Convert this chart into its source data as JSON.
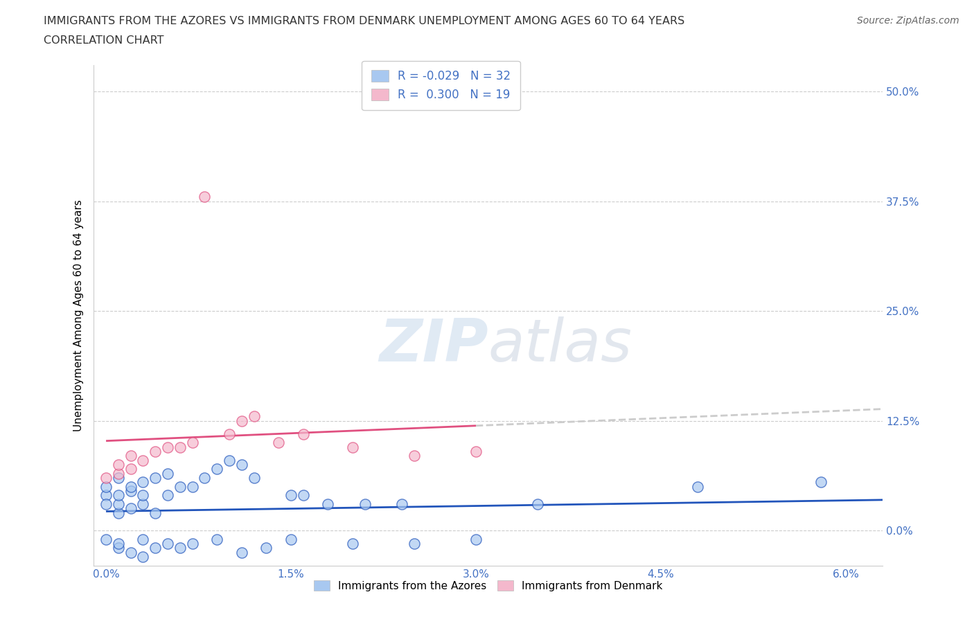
{
  "title_line1": "IMMIGRANTS FROM THE AZORES VS IMMIGRANTS FROM DENMARK UNEMPLOYMENT AMONG AGES 60 TO 64 YEARS",
  "title_line2": "CORRELATION CHART",
  "source": "Source: ZipAtlas.com",
  "ylabel": "Unemployment Among Ages 60 to 64 years",
  "legend_label1": "Immigrants from the Azores",
  "legend_label2": "Immigrants from Denmark",
  "R1": -0.029,
  "N1": 32,
  "R2": 0.3,
  "N2": 19,
  "color1": "#a8c8f0",
  "color2": "#f4b8cc",
  "line_color1": "#2255bb",
  "line_color2": "#e05080",
  "dash_color": "#cccccc",
  "axis_color": "#4472c4",
  "text_color": "#333333",
  "grid_color": "#cccccc",
  "ytick_labels": [
    "0.0%",
    "12.5%",
    "25.0%",
    "37.5%",
    "50.0%"
  ],
  "ytick_values": [
    0.0,
    0.125,
    0.25,
    0.375,
    0.5
  ],
  "xtick_labels": [
    "0.0%",
    "1.5%",
    "3.0%",
    "4.5%",
    "6.0%"
  ],
  "xtick_values": [
    0.0,
    0.015,
    0.03,
    0.045,
    0.06
  ],
  "xlim": [
    -0.001,
    0.063
  ],
  "ylim": [
    -0.04,
    0.53
  ],
  "azores_x": [
    0.0,
    0.0,
    0.0,
    0.001,
    0.001,
    0.001,
    0.001,
    0.002,
    0.002,
    0.002,
    0.003,
    0.003,
    0.003,
    0.004,
    0.004,
    0.005,
    0.005,
    0.006,
    0.007,
    0.008,
    0.009,
    0.01,
    0.011,
    0.012,
    0.015,
    0.016,
    0.018,
    0.021,
    0.024,
    0.035,
    0.048,
    0.058
  ],
  "azores_y": [
    0.04,
    0.03,
    0.05,
    0.02,
    0.03,
    0.04,
    0.06,
    0.025,
    0.045,
    0.05,
    0.03,
    0.04,
    0.055,
    0.02,
    0.06,
    0.04,
    0.065,
    0.05,
    0.05,
    0.06,
    0.07,
    0.08,
    0.075,
    0.06,
    0.04,
    0.04,
    0.03,
    0.03,
    0.03,
    0.03,
    0.05,
    0.055
  ],
  "denmark_x": [
    0.0,
    0.001,
    0.001,
    0.002,
    0.002,
    0.003,
    0.004,
    0.005,
    0.006,
    0.007,
    0.008,
    0.01,
    0.011,
    0.012,
    0.014,
    0.016,
    0.02,
    0.025,
    0.03
  ],
  "denmark_y": [
    0.06,
    0.065,
    0.075,
    0.07,
    0.085,
    0.08,
    0.09,
    0.095,
    0.095,
    0.1,
    0.38,
    0.11,
    0.125,
    0.13,
    0.1,
    0.11,
    0.095,
    0.085,
    0.09
  ],
  "watermark_text": "ZIPatlas",
  "watermark_color": "#dce8f4",
  "azores_below_x": [
    0.0,
    0.001,
    0.001,
    0.002,
    0.003,
    0.003,
    0.004,
    0.005,
    0.006,
    0.007,
    0.009,
    0.011,
    0.013,
    0.015,
    0.02,
    0.025,
    0.03
  ],
  "azores_below_y": [
    -0.01,
    -0.02,
    -0.015,
    -0.025,
    -0.03,
    -0.01,
    -0.02,
    -0.015,
    -0.02,
    -0.015,
    -0.01,
    -0.025,
    -0.02,
    -0.01,
    -0.015,
    -0.015,
    -0.01
  ]
}
